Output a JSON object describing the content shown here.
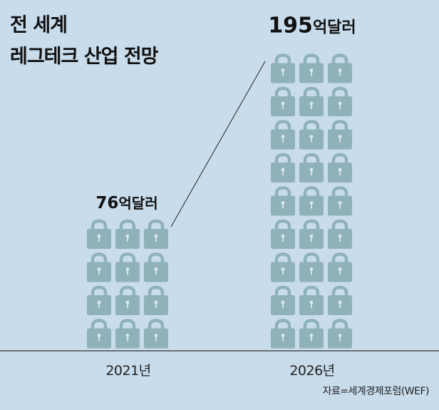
{
  "title_line1": "전 세계",
  "title_line2": "레그테크 산업 전망",
  "source": "자료=세계경제포럼(WEF)",
  "colors": {
    "background": "#c8dcec",
    "lock": "#8fb2ba",
    "axis": "#333333"
  },
  "chart_data": {
    "type": "bar",
    "categories": [
      "2021년",
      "2026년"
    ],
    "values": [
      76,
      195
    ],
    "value_labels": [
      {
        "number": "76",
        "unit": "억달러"
      },
      {
        "number": "195",
        "unit": "억달러"
      }
    ],
    "unit": "억달러",
    "icon": "lock-icon",
    "icon_grid": [
      {
        "columns": 3,
        "rows": 4
      },
      {
        "columns": 3,
        "rows": 9
      }
    ],
    "title": "전 세계 레그테크 산업 전망",
    "xlabel": "",
    "ylabel": ""
  }
}
